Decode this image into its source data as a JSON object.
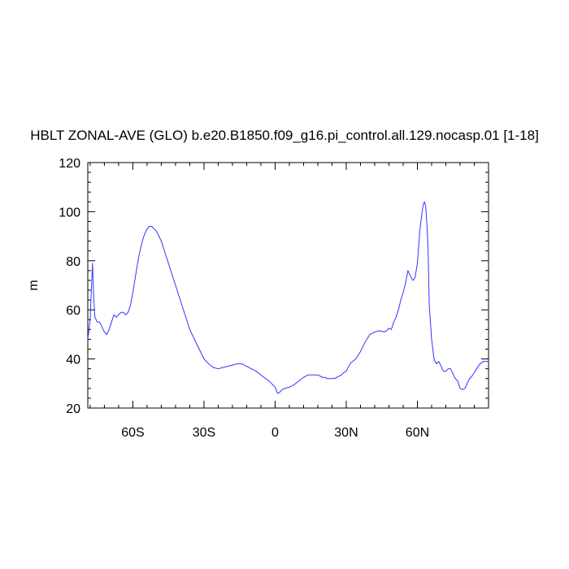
{
  "chart_data": {
    "type": "line",
    "title": "HBLT ZONAL-AVE (GLO) b.e20.B1850.f09_g16.pi_control.all.129.nocasp.01 [1-18]",
    "xlabel": "",
    "ylabel": "m",
    "xlim": [
      -79,
      90
    ],
    "ylim": [
      20,
      120
    ],
    "x_ticks": [
      {
        "value": -60,
        "label": "60S"
      },
      {
        "value": -30,
        "label": "30S"
      },
      {
        "value": 0,
        "label": "0"
      },
      {
        "value": 30,
        "label": "30N"
      },
      {
        "value": 60,
        "label": "60N"
      }
    ],
    "y_ticks": [
      {
        "value": 20,
        "label": "20"
      },
      {
        "value": 40,
        "label": "40"
      },
      {
        "value": 60,
        "label": "60"
      },
      {
        "value": 80,
        "label": "80"
      },
      {
        "value": 100,
        "label": "100"
      },
      {
        "value": 120,
        "label": "120"
      }
    ],
    "line_color": "#3333ff",
    "series": [
      {
        "x": [
          -79,
          -78,
          -77.5,
          -77,
          -76.5,
          -76,
          -75,
          -74,
          -73,
          -72,
          -71,
          -70,
          -69,
          -68,
          -67,
          -66,
          -65,
          -64,
          -63,
          -62,
          -61,
          -60,
          -59,
          -58,
          -57,
          -56,
          -55,
          -54,
          -53,
          -52,
          -51,
          -50,
          -49,
          -48,
          -47,
          -46,
          -45,
          -44,
          -43,
          -42,
          -40,
          -38,
          -36,
          -34,
          -32,
          -30,
          -28,
          -26,
          -24,
          -22,
          -20,
          -18,
          -16,
          -14,
          -12,
          -10,
          -8,
          -6,
          -4,
          -2,
          0,
          1,
          2,
          3,
          4,
          6,
          8,
          10,
          12,
          13,
          14,
          15,
          16,
          17,
          18,
          19,
          20,
          21,
          22,
          23,
          24,
          25,
          26,
          27,
          28,
          29,
          30,
          31,
          32,
          34,
          36,
          38,
          40,
          42,
          44,
          46,
          47,
          48,
          49,
          50,
          51,
          52,
          53,
          54,
          55,
          56,
          57,
          58,
          59,
          60,
          61,
          62,
          62.5,
          63,
          63.5,
          64,
          64.5,
          65,
          66,
          67,
          68,
          69,
          70,
          71,
          72,
          73,
          74,
          75,
          76,
          77,
          78,
          79,
          80,
          81,
          82,
          83,
          84,
          85,
          86,
          87,
          88,
          89,
          90
        ],
        "y": [
          48,
          56,
          68,
          79,
          65,
          57,
          55,
          55,
          53,
          51,
          50,
          52,
          55,
          58,
          57,
          58,
          59,
          59,
          58,
          59,
          62,
          67,
          73,
          79,
          84,
          88,
          91,
          93,
          94,
          94,
          93,
          92,
          90,
          88,
          85,
          82,
          79,
          76,
          73,
          70,
          64,
          58,
          52,
          48,
          44,
          40,
          38,
          36.5,
          36,
          36.5,
          37,
          37.5,
          38,
          38,
          37,
          36,
          35,
          33.5,
          32,
          30.5,
          28.5,
          26,
          26.5,
          27.5,
          28,
          28.5,
          29.5,
          31,
          32.5,
          33,
          33.5,
          33.5,
          33.5,
          33.5,
          33.5,
          33,
          32.5,
          32.5,
          32,
          32,
          32,
          32,
          32.5,
          33,
          33.5,
          34.5,
          35,
          37,
          38.5,
          40,
          43,
          47,
          50,
          51,
          51.5,
          51,
          51.5,
          52.5,
          52,
          55,
          57,
          60,
          64,
          67,
          71,
          76,
          74,
          72,
          73,
          79,
          92,
          100,
          103,
          104,
          102,
          95,
          85,
          62,
          48,
          40,
          38,
          39,
          37,
          35,
          35,
          36,
          36,
          34,
          32,
          31,
          28,
          27.5,
          28,
          30,
          32,
          33,
          34.5,
          36,
          37.5,
          38.5,
          39,
          39,
          39
        ]
      }
    ]
  }
}
